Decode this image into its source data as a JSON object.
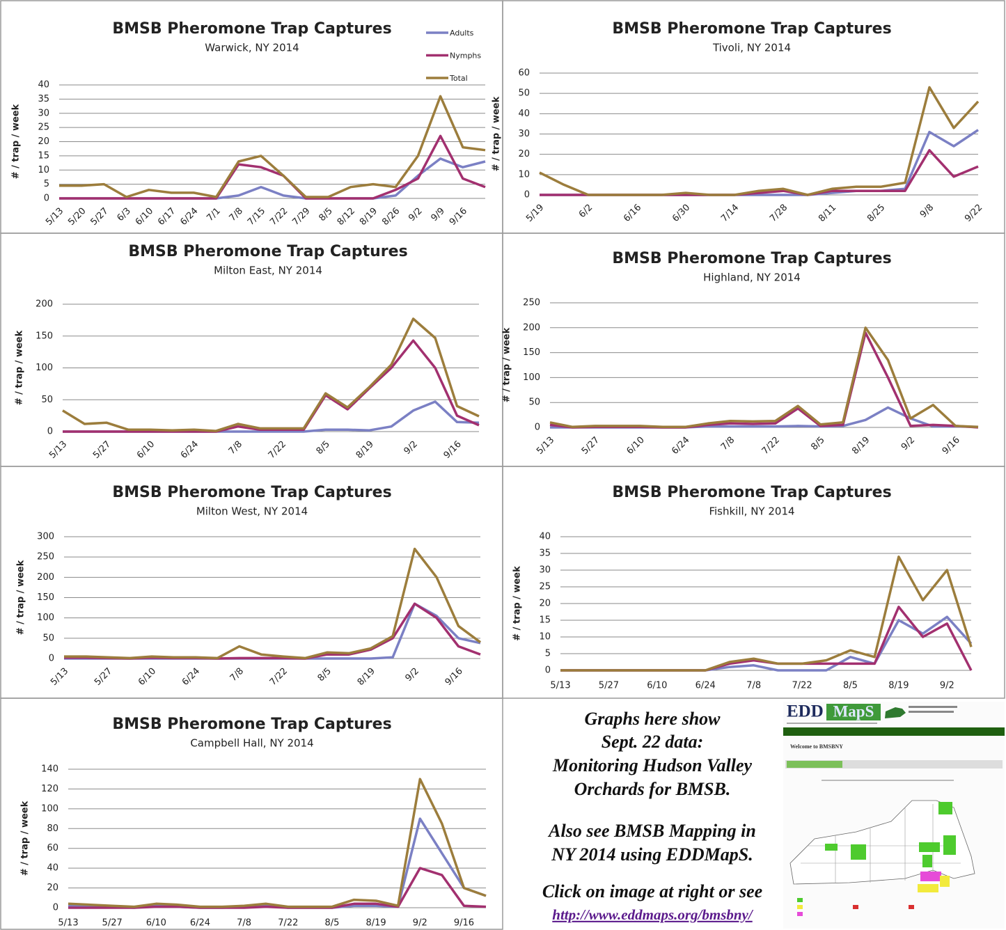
{
  "chart_data": [
    {
      "type": "line",
      "title": "BMSB Pheromone Trap Captures",
      "subtitle": "Warwick, NY 2014",
      "y_label": "# / trap / week",
      "grid": true,
      "legend": "upper right",
      "categories": [
        "5/13",
        "5/20",
        "5/27",
        "6/3",
        "6/10",
        "6/17",
        "6/24",
        "7/1",
        "7/8",
        "7/15",
        "7/22",
        "7/29",
        "8/5",
        "8/12",
        "8/19",
        "8/26",
        "9/2",
        "9/9",
        "9/16",
        null
      ],
      "ylim": [
        0,
        40
      ],
      "yticks": [
        0,
        5,
        10,
        15,
        20,
        25,
        30,
        35,
        40
      ],
      "series": [
        {
          "name": "Adults",
          "color": "#7b80c4",
          "values": [
            0,
            0,
            0,
            0,
            0,
            0,
            0,
            0,
            1,
            4,
            1,
            0,
            0,
            0,
            0,
            1,
            8,
            14,
            11,
            13
          ]
        },
        {
          "name": "Nymphs",
          "color": "#a2306f",
          "values": [
            0,
            0,
            0,
            0,
            0,
            0,
            0,
            0,
            12,
            11,
            8,
            0,
            0,
            0,
            0,
            3,
            7,
            22,
            7,
            4
          ]
        },
        {
          "name": "Total",
          "color": "#9c7d3c",
          "values": [
            4.5,
            4.5,
            5,
            0.5,
            3,
            2,
            2,
            0.5,
            13,
            15,
            8,
            0.5,
            0.5,
            4,
            5,
            4,
            15,
            36,
            18,
            17
          ]
        }
      ]
    },
    {
      "type": "line",
      "title": "BMSB Pheromone Trap Captures",
      "subtitle": "Tivoli, NY 2014",
      "y_label": "# / trap / week",
      "grid": true,
      "categories": [
        "5/19",
        null,
        "6/2",
        null,
        "6/16",
        null,
        "6/30",
        null,
        "7/14",
        null,
        "7/28",
        null,
        "8/11",
        null,
        "8/25",
        null,
        "9/8",
        null,
        "9/22"
      ],
      "ylim": [
        0,
        60
      ],
      "yticks": [
        0,
        10,
        20,
        30,
        40,
        50,
        60
      ],
      "series": [
        {
          "name": "Adults",
          "color": "#7b80c4",
          "values": [
            0,
            0,
            0,
            0,
            0,
            0,
            0,
            0,
            0,
            0,
            0,
            0,
            1,
            2,
            2,
            3,
            31,
            24,
            32
          ]
        },
        {
          "name": "Nymphs",
          "color": "#a2306f",
          "values": [
            0,
            0,
            0,
            0,
            0,
            0,
            0,
            0,
            0,
            1,
            2,
            0,
            2,
            2,
            2,
            2,
            22,
            9,
            14
          ]
        },
        {
          "name": "Total",
          "color": "#9c7d3c",
          "values": [
            11,
            5,
            0,
            0,
            0,
            0,
            1,
            0,
            0,
            2,
            3,
            0,
            3,
            4,
            4,
            6,
            53,
            33,
            46
          ]
        }
      ]
    },
    {
      "type": "line",
      "title": "BMSB Pheromone Trap Captures",
      "subtitle": "Milton East, NY 2014",
      "y_label": "# / trap / week",
      "grid": true,
      "categories": [
        "5/13",
        null,
        "5/27",
        null,
        "6/10",
        null,
        "6/24",
        null,
        "7/8",
        null,
        "7/22",
        null,
        "8/5",
        null,
        "8/19",
        null,
        "9/2",
        null,
        "9/16",
        null
      ],
      "ylim": [
        0,
        200
      ],
      "yticks": [
        0,
        50,
        100,
        150,
        200
      ],
      "series": [
        {
          "name": "Adults",
          "color": "#7b80c4",
          "values": [
            0,
            0,
            0,
            0,
            0,
            0,
            0,
            0,
            0,
            0,
            0,
            0,
            3,
            3,
            2,
            8,
            33,
            47,
            15,
            14
          ]
        },
        {
          "name": "Nymphs",
          "color": "#a2306f",
          "values": [
            0,
            0,
            0,
            0,
            0,
            0,
            0,
            0,
            8,
            3,
            3,
            3,
            57,
            35,
            68,
            100,
            143,
            100,
            25,
            10
          ]
        },
        {
          "name": "Total",
          "color": "#9c7d3c",
          "values": [
            33,
            12,
            14,
            3,
            3,
            2,
            3,
            1,
            12,
            5,
            5,
            5,
            60,
            38,
            70,
            105,
            177,
            147,
            40,
            24
          ]
        }
      ]
    },
    {
      "type": "line",
      "title": "BMSB Pheromone Trap Captures",
      "subtitle": "Highland, NY 2014",
      "y_label": "# / trap / week",
      "grid": true,
      "categories": [
        "5/13",
        null,
        "5/27",
        null,
        "6/10",
        null,
        "6/24",
        null,
        "7/8",
        null,
        "7/22",
        null,
        "8/5",
        null,
        "8/19",
        null,
        "9/2",
        null,
        "9/16",
        null
      ],
      "ylim": [
        0,
        250
      ],
      "yticks": [
        0,
        50,
        100,
        150,
        200,
        250
      ],
      "series": [
        {
          "name": "Adults",
          "color": "#7b80c4",
          "values": [
            0,
            0,
            0,
            0,
            0,
            0,
            0,
            2,
            2,
            2,
            2,
            3,
            2,
            3,
            15,
            40,
            18,
            2,
            2,
            1
          ]
        },
        {
          "name": "Nymphs",
          "color": "#a2306f",
          "values": [
            5,
            0,
            1,
            1,
            1,
            0,
            0,
            5,
            8,
            7,
            8,
            38,
            3,
            5,
            190,
            100,
            3,
            5,
            3,
            0
          ]
        },
        {
          "name": "Total",
          "color": "#9c7d3c",
          "values": [
            10,
            1,
            3,
            3,
            3,
            1,
            1,
            8,
            13,
            12,
            13,
            43,
            6,
            10,
            200,
            135,
            18,
            45,
            3,
            1
          ]
        }
      ]
    },
    {
      "type": "line",
      "title": "BMSB Pheromone Trap Captures",
      "subtitle": "Milton West, NY 2014",
      "y_label": "# / trap / week",
      "grid": true,
      "categories": [
        "5/13",
        null,
        "5/27",
        null,
        "6/10",
        null,
        "6/24",
        null,
        "7/8",
        null,
        "7/22",
        null,
        "8/5",
        null,
        "8/19",
        null,
        "9/2",
        null,
        "9/16",
        null
      ],
      "ylim": [
        0,
        300
      ],
      "yticks": [
        0,
        50,
        100,
        150,
        200,
        250,
        300
      ],
      "series": [
        {
          "name": "Adults",
          "color": "#7b80c4",
          "values": [
            0,
            0,
            0,
            0,
            0,
            0,
            0,
            0,
            0,
            0,
            0,
            0,
            0,
            0,
            0,
            3,
            135,
            105,
            50,
            38
          ]
        },
        {
          "name": "Nymphs",
          "color": "#a2306f",
          "values": [
            2,
            2,
            1,
            0,
            2,
            1,
            1,
            0,
            1,
            1,
            1,
            0,
            10,
            10,
            22,
            50,
            135,
            100,
            30,
            10
          ]
        },
        {
          "name": "Total",
          "color": "#9c7d3c",
          "values": [
            5,
            5,
            3,
            1,
            5,
            3,
            3,
            1,
            30,
            10,
            5,
            1,
            15,
            13,
            25,
            55,
            270,
            200,
            80,
            40
          ]
        }
      ]
    },
    {
      "type": "line",
      "title": "BMSB Pheromone Trap Captures",
      "subtitle": "Fishkill, NY 2014",
      "y_label": "# / trap / week",
      "grid": true,
      "categories": [
        "5/13",
        null,
        "5/27",
        null,
        "6/10",
        null,
        "6/24",
        null,
        "7/8",
        null,
        "7/22",
        null,
        "8/5",
        null,
        "8/19",
        null,
        "9/2",
        null
      ],
      "ylim": [
        0,
        40
      ],
      "yticks": [
        0,
        5,
        10,
        15,
        20,
        25,
        30,
        35,
        40
      ],
      "series": [
        {
          "name": "Adults",
          "color": "#7b80c4",
          "values": [
            0,
            0,
            0,
            0,
            0,
            0,
            0,
            1,
            1.5,
            0,
            0,
            0,
            4,
            2,
            15,
            11,
            16,
            8
          ]
        },
        {
          "name": "Nymphs",
          "color": "#a2306f",
          "values": [
            0,
            0,
            0,
            0,
            0,
            0,
            0,
            2,
            3,
            2,
            2,
            2,
            2,
            2,
            19,
            10,
            14,
            0
          ]
        },
        {
          "name": "Total",
          "color": "#9c7d3c",
          "values": [
            0,
            0,
            0,
            0,
            0,
            0,
            0,
            2.5,
            3.5,
            2,
            2,
            3,
            6,
            4,
            34,
            21,
            30,
            7
          ]
        }
      ]
    },
    {
      "type": "line",
      "title": "BMSB Pheromone Trap Captures",
      "subtitle": "Campbell Hall, NY 2014",
      "y_label": "# / trap / week",
      "grid": true,
      "categories": [
        "5/13",
        null,
        "5/27",
        null,
        "6/10",
        null,
        "6/24",
        null,
        "7/8",
        null,
        "7/22",
        null,
        "8/5",
        null,
        "8/19",
        null,
        "9/2",
        null,
        "9/16",
        null
      ],
      "ylim": [
        0,
        140
      ],
      "yticks": [
        0,
        20,
        40,
        60,
        80,
        100,
        120,
        140
      ],
      "series": [
        {
          "name": "Adults",
          "color": "#7b80c4",
          "values": [
            2,
            1,
            1,
            0,
            2,
            1,
            0,
            0,
            1,
            2,
            0,
            0,
            0,
            2,
            2,
            1,
            90,
            55,
            20,
            12
          ]
        },
        {
          "name": "Nymphs",
          "color": "#a2306f",
          "values": [
            0,
            0,
            0,
            0,
            1,
            1,
            0,
            0,
            0,
            1,
            0,
            0,
            0,
            4,
            4,
            1,
            40,
            33,
            2,
            1
          ]
        },
        {
          "name": "Total",
          "color": "#9c7d3c",
          "values": [
            4,
            3,
            2,
            1,
            4,
            3,
            1,
            1,
            2,
            4,
            1,
            1,
            1,
            8,
            7,
            2,
            130,
            85,
            20,
            12
          ]
        }
      ]
    }
  ],
  "panel": {
    "lines": [
      "Graphs here show",
      "Sept. 22 data:",
      "Monitoring Hudson Valley",
      "Orchards for BMSB.",
      "Also see BMSB Mapping in",
      "NY 2014 using EDDMapS.",
      "Click on image at right or see"
    ],
    "link": "http://www.eddmaps.org/bmsbny/",
    "image": {
      "logo_left": "EDD",
      "logo_right": "MapS",
      "heading": "Welcome to BMSBNY"
    }
  }
}
